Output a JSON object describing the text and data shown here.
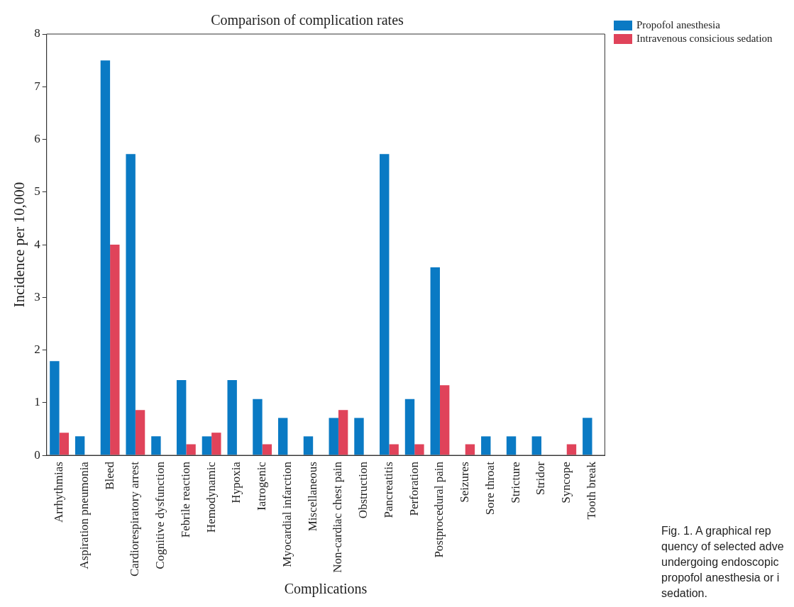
{
  "chart_data": {
    "type": "bar",
    "title": "Comparison of complication rates",
    "xlabel": "Complications",
    "ylabel": "Incidence per 10,000",
    "categories": [
      "Arrhythmias",
      "Aspiration pneumonia",
      "Bleed",
      "Cardiorespiratory arrest",
      "Cognitive dysfunction",
      "Febrile reaction",
      "Hemodynamic",
      "Hypoxia",
      "Iatrogenic",
      "Myocardial infarction",
      "Miscellaneous",
      "Non-cardiac chest pain",
      "Obstruction",
      "Pancreatitis",
      "Perforation",
      "Postprocedural pain",
      "Seizures",
      "Sore throat",
      "Stricture",
      "Stridor",
      "Syncope",
      "Tooth break"
    ],
    "series": [
      {
        "name": "Propofol anesthesia",
        "color": "#0a7ac4",
        "values": [
          1.79,
          0.36,
          7.5,
          5.72,
          0.36,
          1.43,
          0.36,
          1.43,
          1.07,
          0.71,
          0.36,
          0.71,
          0.71,
          5.72,
          1.07,
          3.57,
          0,
          0.36,
          0.36,
          0.36,
          0,
          0.71
        ]
      },
      {
        "name": "Intravenous consicious sedation",
        "color": "#e0435a",
        "values": [
          0.43,
          0,
          4.0,
          0.86,
          0,
          0.21,
          0.43,
          0,
          0.21,
          0,
          0,
          0.86,
          0,
          0.21,
          0.21,
          1.33,
          0.21,
          0,
          0,
          0,
          0.21,
          0
        ]
      }
    ],
    "ylim": [
      0,
      8
    ],
    "yticks": [
      0,
      1,
      2,
      3,
      4,
      5,
      6,
      7,
      8
    ],
    "grid": false,
    "legend": "top right",
    "annotations": [
      "Fig. 1. A graphical rep\nquency of selected adve\nundergoing endoscopic \npropofol anesthesia or i\nsedation."
    ]
  }
}
